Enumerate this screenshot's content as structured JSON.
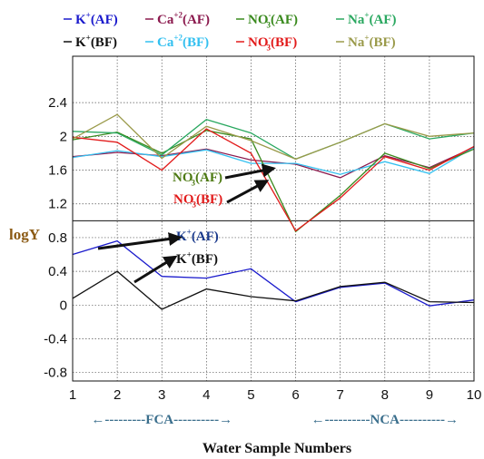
{
  "chart_data": {
    "type": "line",
    "x": [
      1,
      2,
      3,
      4,
      5,
      6,
      7,
      8,
      9,
      10
    ],
    "ylim": [
      -0.9,
      2.95
    ],
    "y_ticks": [
      "2.4",
      "2",
      "1.6",
      "1.2",
      "0.8",
      "0.4",
      "0",
      "-0.4",
      "-0.8"
    ],
    "y_tick_values": [
      2.4,
      2.0,
      1.6,
      1.2,
      0.8,
      0.4,
      0.0,
      -0.4,
      -0.8
    ],
    "x_ticks": [
      "1",
      "2",
      "3",
      "4",
      "5",
      "6",
      "7",
      "8",
      "9",
      "10"
    ],
    "ylabel": "logY",
    "xlabel": "Water Sample Numbers",
    "grid": "dotted",
    "legend_placement": "top",
    "series": [
      {
        "name": "K⁺(AF)",
        "legend_base": "K",
        "legend_sup": "+",
        "legend_sub": "",
        "legend_tag": "(AF)",
        "color": "#1a1acc",
        "values": [
          0.6,
          0.76,
          0.34,
          0.32,
          0.43,
          0.04,
          0.21,
          0.26,
          -0.01,
          0.06
        ]
      },
      {
        "name": "K⁺(BF)",
        "legend_base": "K",
        "legend_sup": "+",
        "legend_sub": "",
        "legend_tag": "(BF)",
        "color": "#111111",
        "values": [
          0.08,
          0.4,
          -0.05,
          0.19,
          0.1,
          0.05,
          0.22,
          0.27,
          0.04,
          0.03
        ]
      },
      {
        "name": "Ca⁺²(AF)",
        "legend_base": "Ca",
        "legend_sup": "+2",
        "legend_sub": "",
        "legend_tag": "(AF)",
        "color": "#8b1a4e",
        "values": [
          1.76,
          1.81,
          1.77,
          1.85,
          1.72,
          1.67,
          1.51,
          1.77,
          1.63,
          1.87
        ]
      },
      {
        "name": "Ca⁺²(BF)",
        "legend_base": "Ca",
        "legend_sup": "+2",
        "legend_sub": "",
        "legend_tag": "(BF)",
        "color": "#33c0f0",
        "values": [
          1.75,
          1.83,
          1.76,
          1.84,
          1.68,
          1.68,
          1.55,
          1.7,
          1.56,
          1.87
        ]
      },
      {
        "name": "NO₃⁻(AF)",
        "legend_base": "NO",
        "legend_sup": "-",
        "legend_sub": "3",
        "legend_tag": "(AF)",
        "color": "#3a8a1e",
        "values": [
          1.96,
          2.05,
          1.8,
          2.07,
          1.97,
          0.87,
          1.3,
          1.8,
          1.62,
          1.85
        ]
      },
      {
        "name": "NO₃⁻(BF)",
        "legend_base": "NO",
        "legend_sup": "-",
        "legend_sub": "3",
        "legend_tag": "(BF)",
        "color": "#e21b1b",
        "values": [
          1.99,
          1.93,
          1.6,
          2.09,
          1.8,
          0.88,
          1.27,
          1.76,
          1.6,
          1.88
        ]
      },
      {
        "name": "Na⁺(AF)",
        "legend_base": "Na",
        "legend_sup": "+",
        "legend_sub": "",
        "legend_tag": "(AF)",
        "color": "#2aa860",
        "values": [
          2.06,
          2.04,
          1.78,
          2.2,
          2.04,
          1.73,
          1.93,
          2.15,
          1.97,
          2.04
        ]
      },
      {
        "name": "Na⁺(BF)",
        "legend_base": "Na",
        "legend_sup": "+",
        "legend_sub": "",
        "legend_tag": "(BF)",
        "color": "#9a9a4a",
        "values": [
          1.97,
          2.26,
          1.74,
          2.12,
          1.95,
          1.73,
          1.93,
          2.15,
          2.0,
          2.04
        ]
      }
    ],
    "annotations": [
      {
        "base": "NO",
        "sub": "3",
        "sup": "-",
        "tag": "(AF)",
        "color": "#4d7a12",
        "point_x": 5.5,
        "point_y": 1.62
      },
      {
        "base": "NO",
        "sub": "3",
        "sup": "-",
        "tag": "(BF)",
        "color": "#e21b1b",
        "point_x": 5.35,
        "point_y": 1.47
      },
      {
        "base": "K",
        "sub": "",
        "sup": "+",
        "tag": "(AF)",
        "color": "#1a3a8c",
        "point_x": 3.4,
        "point_y": 0.8
      },
      {
        "base": "K",
        "sub": "",
        "sup": "+",
        "tag": "(BF)",
        "color": "#111111",
        "point_x": 3.3,
        "point_y": 0.57
      }
    ],
    "regions": [
      {
        "label": "FCA",
        "display": "←---------FCA----------→",
        "color": "#3a6e8c",
        "from_x": 1,
        "to_x": 5
      },
      {
        "label": "NCA",
        "display": "←----------NCA----------→",
        "color": "#3a6e8c",
        "from_x": 6,
        "to_x": 10
      }
    ]
  }
}
